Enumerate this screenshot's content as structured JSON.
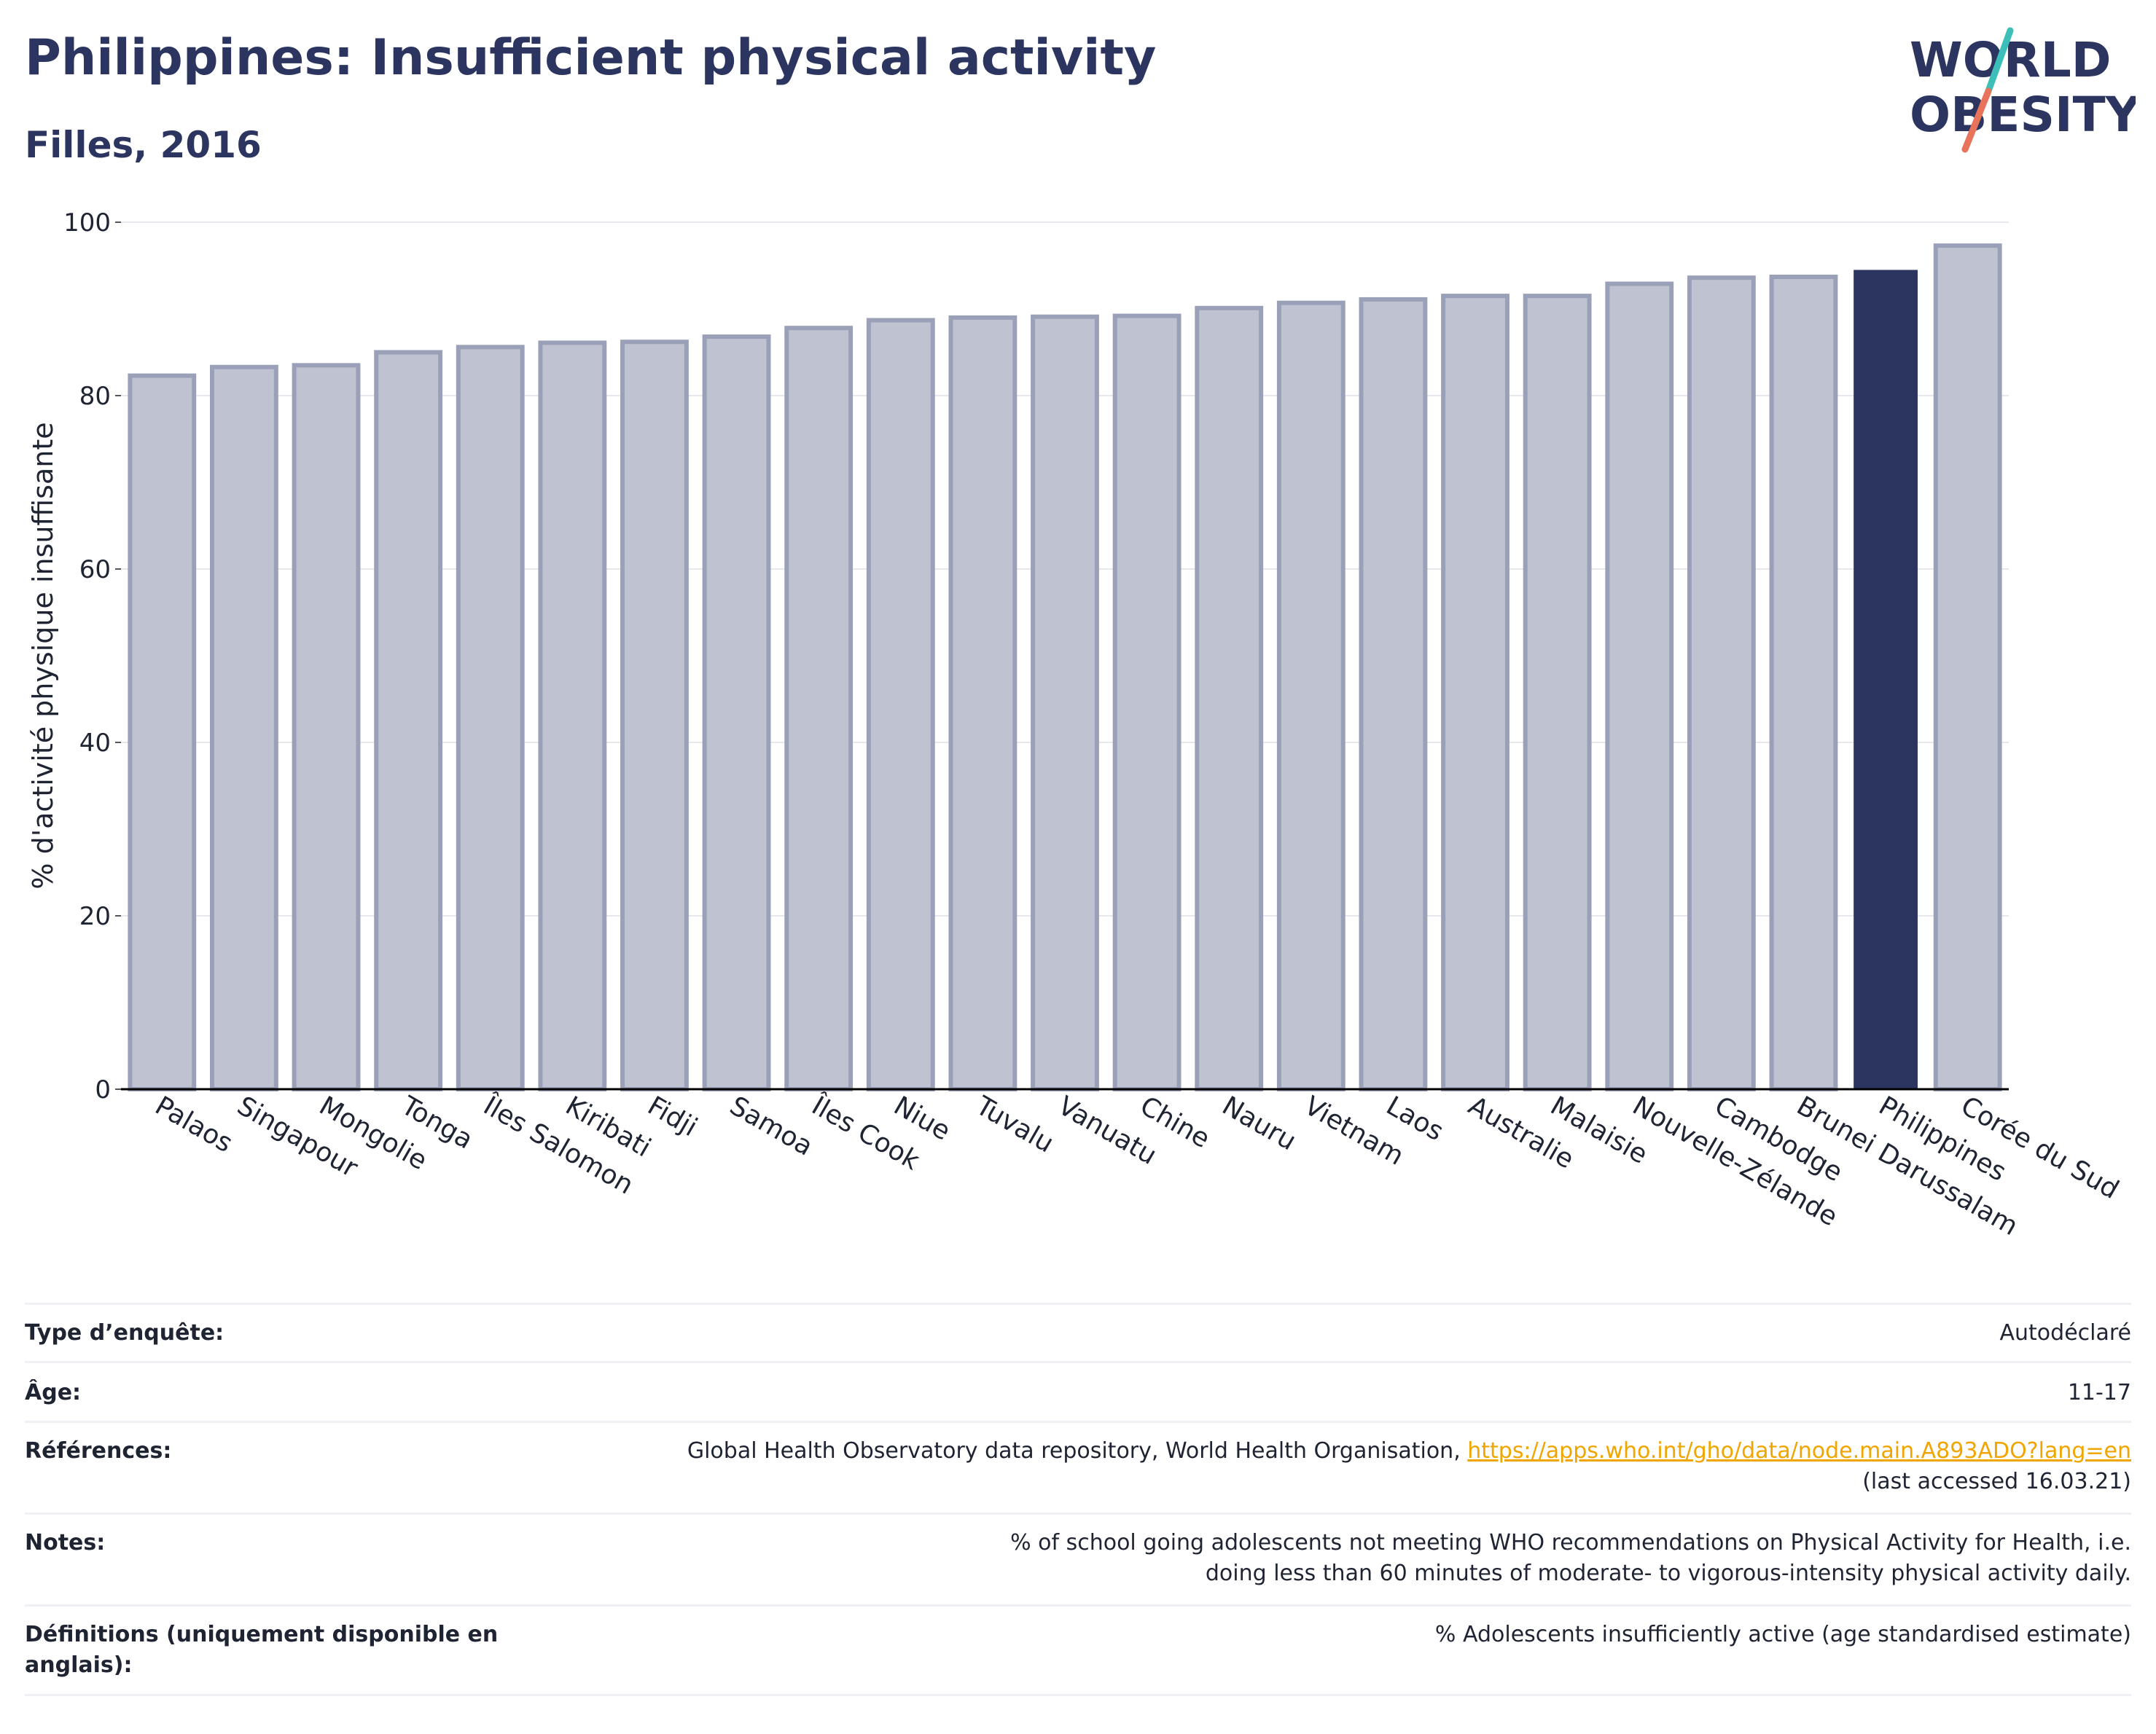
{
  "header": {
    "title": "Philippines: Insufficient physical activity",
    "subtitle": "Filles, 2016"
  },
  "logo": {
    "line1": "WORLD",
    "line2": "OBESITY",
    "text_color": "#2b3560",
    "slash_top_color": "#3bbfb8",
    "slash_bottom_color": "#e8735a"
  },
  "colors": {
    "bar_fill": "#bfc2d0",
    "bar_stroke": "#9aa0b8",
    "highlight_fill": "#2b3560",
    "grid": "#e6e8ee",
    "axis": "#000000"
  },
  "chart_data": {
    "type": "bar",
    "title": "",
    "xlabel": "",
    "ylabel": "% d'activité physique insuffisante",
    "ylim": [
      0,
      100
    ],
    "yticks": [
      0,
      20,
      40,
      60,
      80,
      100
    ],
    "grid": true,
    "highlight": "Philippines",
    "categories": [
      "Palaos",
      "Singapour",
      "Mongolie",
      "Tonga",
      "Îles Salomon",
      "Kiribati",
      "Fidji",
      "Samoa",
      "Îles Cook",
      "Niue",
      "Tuvalu",
      "Vanuatu",
      "Chine",
      "Nauru",
      "Vietnam",
      "Laos",
      "Australie",
      "Malaisie",
      "Nouvelle-Zélande",
      "Cambodge",
      "Brunei Darussalam",
      "Philippines",
      "Corée du Sud"
    ],
    "values": [
      82.3,
      83.3,
      83.5,
      85.0,
      85.6,
      86.1,
      86.2,
      86.8,
      87.8,
      88.7,
      89.0,
      89.1,
      89.2,
      90.1,
      90.7,
      91.1,
      91.5,
      91.5,
      92.9,
      93.6,
      93.7,
      94.5,
      97.3
    ]
  },
  "meta": {
    "survey_label": "Type d’enquête:",
    "survey_value": "Autodéclaré",
    "age_label": "Âge:",
    "age_value": "11-17",
    "references_label": "Références:",
    "references_text": "Global Health Observatory data repository, World Health Organisation, ",
    "references_link": "https://apps.who.int/gho/data/node.main.A893ADO?lang=en",
    "references_accessed": "(last accessed 16.03.21)",
    "notes_label": "Notes:",
    "notes_value": "% of school going adolescents not meeting WHO recommendations on Physical Activity for Health, i.e. doing less than 60 minutes of moderate- to vigorous-intensity physical activity daily.",
    "definitions_label": "Définitions (uniquement disponible en anglais):",
    "definitions_value": "% Adolescents insufficiently active (age standardised estimate)"
  }
}
